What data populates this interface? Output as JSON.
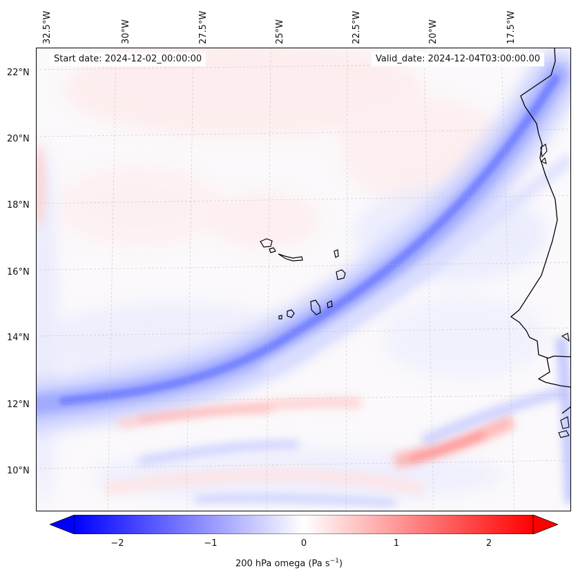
{
  "header": {
    "start_date": "Start date: 2024-12-02_00:00:00",
    "valid_date": "Valid_date: 2024-12-04T03:00:00.00"
  },
  "axes": {
    "lon_labels": [
      "32.5°W",
      "30°W",
      "27.5°W",
      "25°W",
      "22.5°W",
      "20°W",
      "17.5°W"
    ],
    "lat_labels": [
      "22°N",
      "20°N",
      "18°N",
      "16°N",
      "14°N",
      "12°N",
      "10°N"
    ],
    "grid": true
  },
  "colorbar": {
    "ticks": [
      "−2",
      "−1",
      "0",
      "1",
      "2"
    ],
    "label": "200 hPa omega (Pa s",
    "label_sup": "−1",
    "label_end": ")",
    "range": [
      -2.6,
      2.6
    ],
    "colors": {
      "negative": "#0000ff",
      "zero": "#ffffff",
      "positive": "#ff0000"
    },
    "extend": "both",
    "colormap": "bwr"
  },
  "map": {
    "region": "Cape Verde and West African coast",
    "features": [
      "coastline",
      "islands",
      "descent band (blue) SW-NE",
      "ascent patches (red)"
    ]
  }
}
